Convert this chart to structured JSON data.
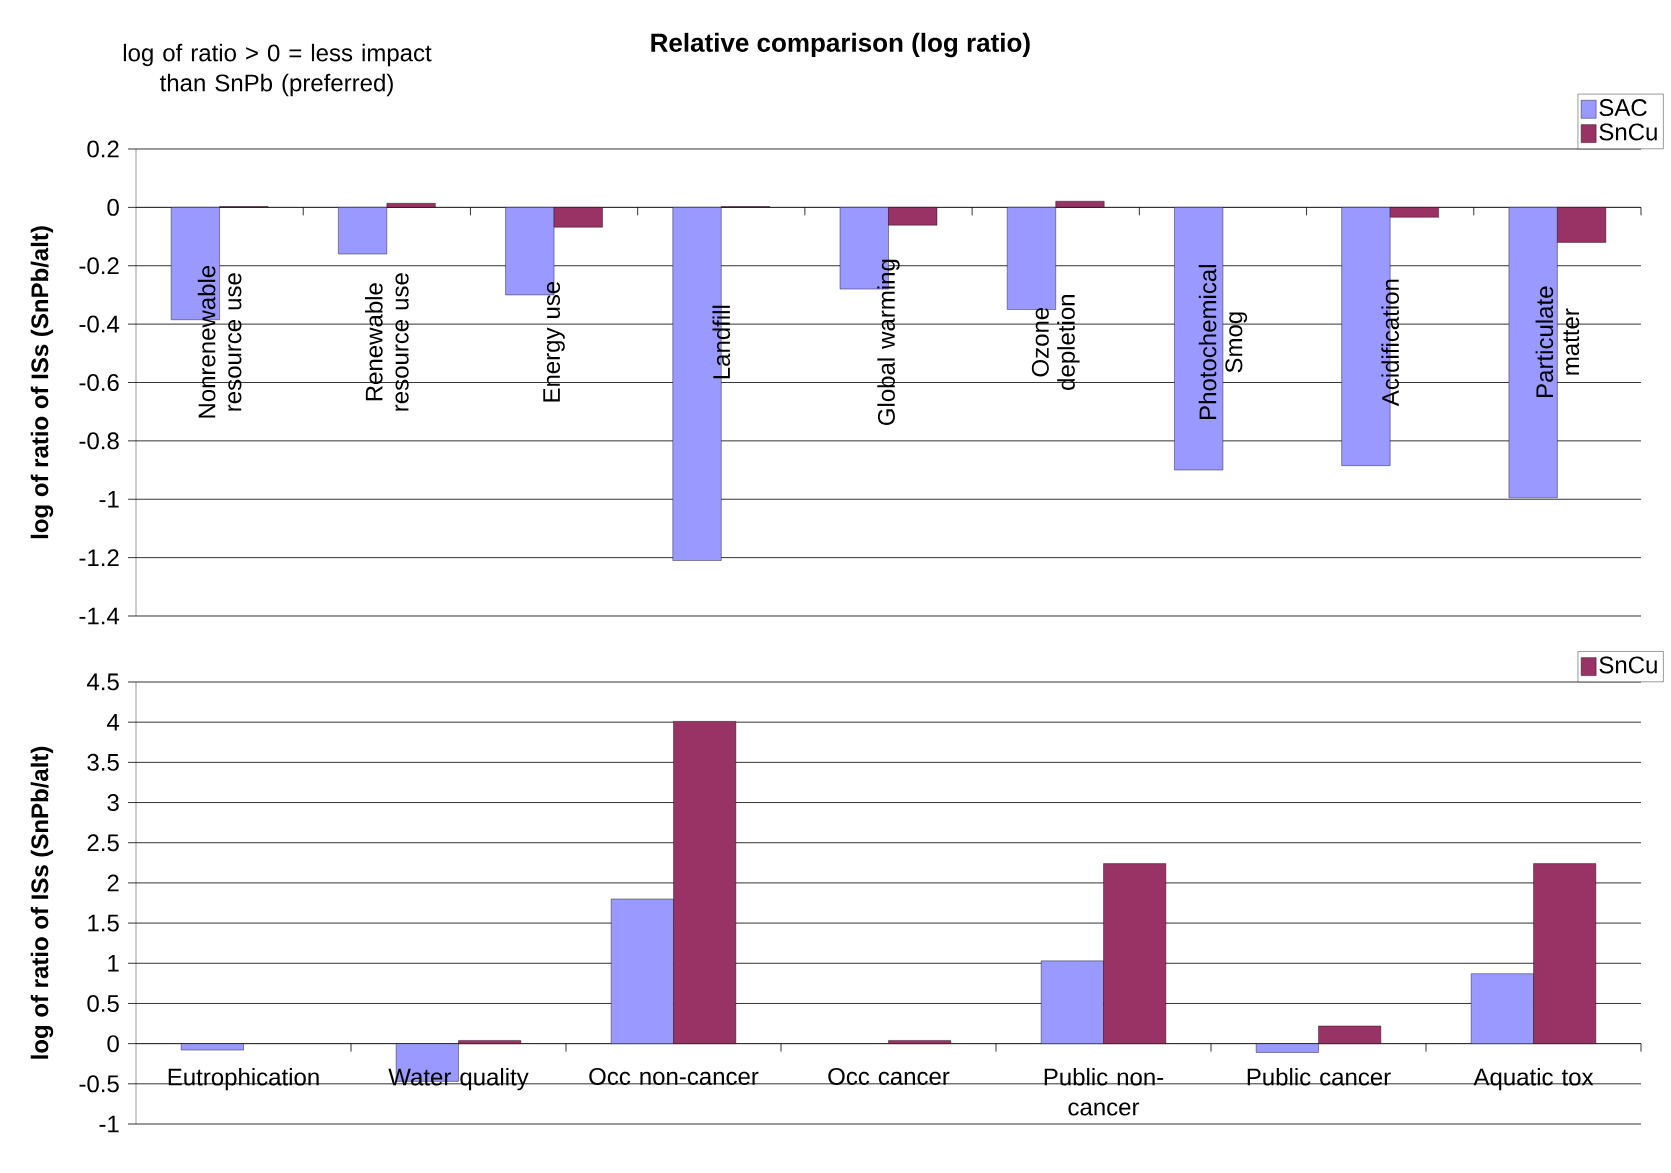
{
  "chart_data": [
    {
      "type": "bar",
      "title": "Relative comparison (log ratio)",
      "annotations": [
        "log of ratio > 0 = less impact than SnPb (preferred)"
      ],
      "ylabel": "log of ratio of ISs (SnPb/alt)",
      "categories": [
        "Nonrenewable resource use",
        "Renewable resource use",
        "Energy use",
        "Landfill",
        "Global warming",
        "Ozone depletion",
        "Photochemical Smog",
        "Acidification",
        "Particulate matter"
      ],
      "series": [
        {
          "name": "SAC",
          "color": "#9999ff",
          "values": [
            -0.385,
            -0.16,
            -0.3,
            -1.21,
            -0.28,
            -0.35,
            -0.9,
            -0.885,
            -0.995
          ]
        },
        {
          "name": "SnCu",
          "color": "#993366",
          "values": [
            0.003,
            0.014,
            -0.068,
            0.003,
            -0.061,
            0.021,
            null,
            -0.034,
            -0.12
          ]
        }
      ],
      "ylim": [
        -1.4,
        0.2
      ],
      "yticks": [
        0.2,
        0,
        -0.2,
        -0.4,
        -0.6,
        -0.8,
        -1,
        -1.2,
        -1.4
      ],
      "grid": "y",
      "legend": "top right"
    },
    {
      "type": "bar",
      "ylabel": "log of ratio of ISs (SnPb/alt)",
      "categories": [
        "Eutrophication",
        "Water quality",
        "Occ non-cancer",
        "Occ cancer",
        "Public non-cancer",
        "Public cancer",
        "Aquatic tox"
      ],
      "series": [
        {
          "color": "#9999ff",
          "values": [
            -0.08,
            -0.47,
            1.8,
            null,
            1.03,
            -0.11,
            0.87
          ]
        },
        {
          "name": "SnCu",
          "color": "#993366",
          "values": [
            null,
            0.04,
            4.01,
            0.04,
            2.24,
            0.22,
            2.24
          ]
        }
      ],
      "ylim": [
        -1,
        4.5
      ],
      "yticks": [
        4.5,
        4,
        3.5,
        3,
        2.5,
        2,
        1.5,
        1,
        0.5,
        0,
        -0.5,
        -1
      ],
      "grid": "y",
      "legend": "top right"
    }
  ]
}
